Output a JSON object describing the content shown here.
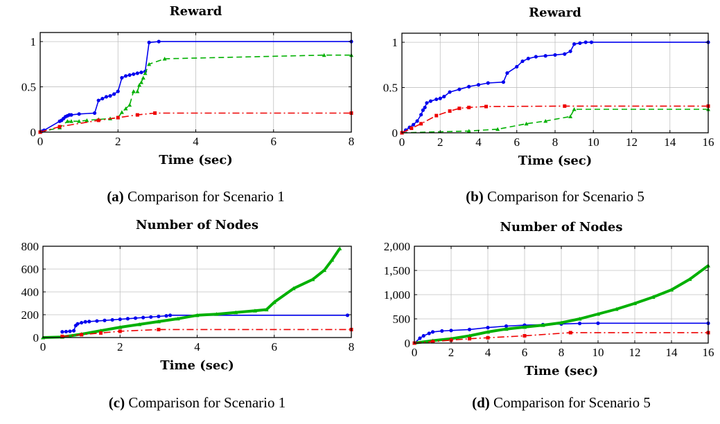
{
  "chart_data": [
    {
      "type": "line",
      "title": "Reward",
      "xlabel": "Time (sec)",
      "ylabel": "",
      "xlim": [
        0,
        8
      ],
      "ylim": [
        0,
        1.1
      ],
      "xticks": [
        0,
        2,
        4,
        6,
        8
      ],
      "xtick_labels": [
        "0",
        "2",
        "4",
        "6",
        "8"
      ],
      "yticks": [
        0,
        0.5,
        1
      ],
      "ytick_labels": [
        "0",
        "0.5",
        "1"
      ],
      "caption": {
        "label": "(a)",
        "text": "Comparison for Scenario 1"
      },
      "series": [
        {
          "name": "blue",
          "color": "#0000ee",
          "dash": "",
          "marker": "circle",
          "x": [
            0,
            0.05,
            0.1,
            0.5,
            0.55,
            0.6,
            0.65,
            0.7,
            0.75,
            0.8,
            1.0,
            1.4,
            1.5,
            1.6,
            1.7,
            1.8,
            1.9,
            2.0,
            2.1,
            2.2,
            2.3,
            2.4,
            2.5,
            2.6,
            2.7,
            2.8,
            3.05,
            8.0
          ],
          "y": [
            0,
            0.01,
            0.02,
            0.12,
            0.13,
            0.15,
            0.17,
            0.18,
            0.19,
            0.19,
            0.2,
            0.21,
            0.35,
            0.37,
            0.39,
            0.4,
            0.42,
            0.45,
            0.6,
            0.62,
            0.63,
            0.64,
            0.65,
            0.66,
            0.67,
            0.99,
            1.0,
            1.0
          ]
        },
        {
          "name": "green",
          "color": "#00b000",
          "dash": "8,5",
          "marker": "triangle",
          "x": [
            0,
            0.5,
            0.7,
            0.8,
            1.0,
            1.2,
            1.5,
            1.8,
            2.0,
            2.1,
            2.2,
            2.3,
            2.4,
            2.5,
            2.55,
            2.6,
            2.65,
            2.7,
            2.8,
            3.2,
            7.3,
            8.0
          ],
          "y": [
            0,
            0.05,
            0.12,
            0.12,
            0.12,
            0.13,
            0.14,
            0.15,
            0.16,
            0.22,
            0.26,
            0.3,
            0.45,
            0.45,
            0.52,
            0.55,
            0.6,
            0.65,
            0.75,
            0.81,
            0.85,
            0.85
          ]
        },
        {
          "name": "red",
          "color": "#ee0000",
          "dash": "10,4,2,4",
          "marker": "square",
          "x": [
            0,
            0.5,
            1.5,
            2.0,
            2.5,
            2.95,
            8.0
          ],
          "y": [
            0,
            0.06,
            0.13,
            0.16,
            0.19,
            0.21,
            0.21
          ]
        }
      ]
    },
    {
      "type": "line",
      "title": "Reward",
      "xlabel": "Time (sec)",
      "ylabel": "",
      "xlim": [
        0,
        16
      ],
      "ylim": [
        0,
        1.1
      ],
      "xticks": [
        0,
        2,
        4,
        6,
        8,
        10,
        12,
        14,
        16
      ],
      "xtick_labels": [
        "0",
        "2",
        "4",
        "6",
        "8",
        "10",
        "12",
        "14",
        "16"
      ],
      "yticks": [
        0,
        0.5,
        1
      ],
      "ytick_labels": [
        "0",
        "0.5",
        "1"
      ],
      "caption": {
        "label": "(b)",
        "text": "Comparison for Scenario 5"
      },
      "series": [
        {
          "name": "blue",
          "color": "#0000ee",
          "dash": "",
          "marker": "circle",
          "x": [
            0,
            0.2,
            0.4,
            0.6,
            0.8,
            1.0,
            1.1,
            1.2,
            1.3,
            1.5,
            1.8,
            2.0,
            2.2,
            2.5,
            3.0,
            3.5,
            4.0,
            4.5,
            5.3,
            5.5,
            6.0,
            6.3,
            6.6,
            7.0,
            7.5,
            8.0,
            8.5,
            8.8,
            9.0,
            9.3,
            9.6,
            9.9,
            16.0
          ],
          "y": [
            0,
            0.03,
            0.06,
            0.09,
            0.13,
            0.2,
            0.25,
            0.28,
            0.33,
            0.35,
            0.37,
            0.38,
            0.4,
            0.45,
            0.48,
            0.51,
            0.53,
            0.55,
            0.56,
            0.66,
            0.73,
            0.79,
            0.82,
            0.84,
            0.85,
            0.86,
            0.87,
            0.9,
            0.98,
            0.99,
            1.0,
            1.0,
            1.0
          ]
        },
        {
          "name": "green",
          "color": "#00b000",
          "dash": "8,5",
          "marker": "triangle",
          "x": [
            0,
            3.5,
            5.0,
            6.5,
            7.5,
            8.8,
            9.0,
            16.0
          ],
          "y": [
            0,
            0.02,
            0.04,
            0.1,
            0.13,
            0.18,
            0.26,
            0.26
          ]
        },
        {
          "name": "red",
          "color": "#ee0000",
          "dash": "10,4,2,4",
          "marker": "square",
          "x": [
            0,
            0.5,
            1.0,
            1.8,
            2.5,
            3.0,
            3.5,
            4.4,
            8.5,
            16.0
          ],
          "y": [
            0,
            0.05,
            0.1,
            0.19,
            0.24,
            0.27,
            0.28,
            0.29,
            0.295,
            0.295
          ]
        }
      ]
    },
    {
      "type": "line",
      "title": "Number of Nodes",
      "xlabel": "Time (sec)",
      "ylabel": "",
      "xlim": [
        0,
        8
      ],
      "ylim": [
        0,
        800
      ],
      "xticks": [
        0,
        2,
        4,
        6,
        8
      ],
      "xtick_labels": [
        "0",
        "2",
        "4",
        "6",
        "8"
      ],
      "yticks": [
        0,
        200,
        400,
        600,
        800
      ],
      "ytick_labels": [
        "0",
        "200",
        "400",
        "600",
        "800"
      ],
      "caption": {
        "label": "(c)",
        "text": "Comparison for Scenario 1"
      },
      "series": [
        {
          "name": "blue",
          "color": "#0000ee",
          "dash": "",
          "marker": "circle",
          "x": [
            0.5,
            0.6,
            0.7,
            0.8,
            0.85,
            0.9,
            1.0,
            1.1,
            1.2,
            1.4,
            1.6,
            1.8,
            2.0,
            2.2,
            2.4,
            2.6,
            2.8,
            3.0,
            3.2,
            3.3,
            7.9
          ],
          "y": [
            50,
            52,
            55,
            60,
            105,
            120,
            130,
            138,
            140,
            145,
            150,
            155,
            160,
            165,
            170,
            175,
            180,
            185,
            190,
            195,
            195
          ]
        },
        {
          "name": "green",
          "color": "#00b000",
          "dash": "",
          "width": 4,
          "marker": "triangle",
          "x": [
            0,
            0.5,
            1.0,
            1.5,
            2.0,
            2.5,
            3.0,
            3.5,
            4.0,
            4.5,
            5.0,
            5.5,
            5.8,
            6.0,
            6.5,
            7.0,
            7.3,
            7.5,
            7.7
          ],
          "y": [
            0,
            5,
            30,
            60,
            90,
            115,
            140,
            165,
            195,
            205,
            220,
            235,
            245,
            310,
            430,
            510,
            590,
            680,
            780
          ]
        },
        {
          "name": "red",
          "color": "#ee0000",
          "dash": "10,4,2,4",
          "marker": "square",
          "x": [
            0.5,
            1.0,
            1.5,
            2.0,
            3.0,
            8.0
          ],
          "y": [
            10,
            25,
            40,
            55,
            70,
            70
          ]
        }
      ]
    },
    {
      "type": "line",
      "title": "Number of Nodes",
      "xlabel": "Time (sec)",
      "ylabel": "",
      "xlim": [
        0,
        16
      ],
      "ylim": [
        0,
        2000
      ],
      "xticks": [
        0,
        2,
        4,
        6,
        8,
        10,
        12,
        14,
        16
      ],
      "xtick_labels": [
        "0",
        "2",
        "4",
        "6",
        "8",
        "10",
        "12",
        "14",
        "16"
      ],
      "yticks": [
        0,
        500,
        1000,
        1500,
        2000
      ],
      "ytick_labels": [
        "0",
        "500",
        "1,000",
        "1,500",
        "2,000"
      ],
      "caption": {
        "label": "(d)",
        "text": "Comparison for Scenario 5"
      },
      "series": [
        {
          "name": "blue",
          "color": "#0000ee",
          "dash": "",
          "marker": "circle",
          "x": [
            0,
            0.3,
            0.5,
            0.8,
            1.0,
            1.5,
            2.0,
            3.0,
            4.0,
            5.0,
            6.0,
            7.0,
            8.0,
            9.0,
            10.0,
            16.0
          ],
          "y": [
            0,
            100,
            150,
            200,
            230,
            250,
            260,
            280,
            320,
            350,
            370,
            380,
            395,
            405,
            410,
            410
          ]
        },
        {
          "name": "green",
          "color": "#00b000",
          "dash": "",
          "width": 4,
          "marker": "triangle",
          "x": [
            0,
            1.0,
            2.0,
            3.0,
            4.0,
            5.0,
            6.0,
            7.0,
            8.0,
            9.0,
            10.0,
            11.0,
            12.0,
            13.0,
            14.0,
            15.0,
            16.0
          ],
          "y": [
            0,
            50,
            90,
            150,
            230,
            290,
            330,
            370,
            420,
            500,
            600,
            700,
            820,
            950,
            1100,
            1320,
            1600
          ]
        },
        {
          "name": "red",
          "color": "#ee0000",
          "dash": "10,4,2,4",
          "marker": "square",
          "x": [
            0,
            1.0,
            2.0,
            3.0,
            4.0,
            6.0,
            8.5,
            16.0
          ],
          "y": [
            0,
            30,
            60,
            90,
            110,
            150,
            215,
            215
          ]
        }
      ]
    }
  ]
}
